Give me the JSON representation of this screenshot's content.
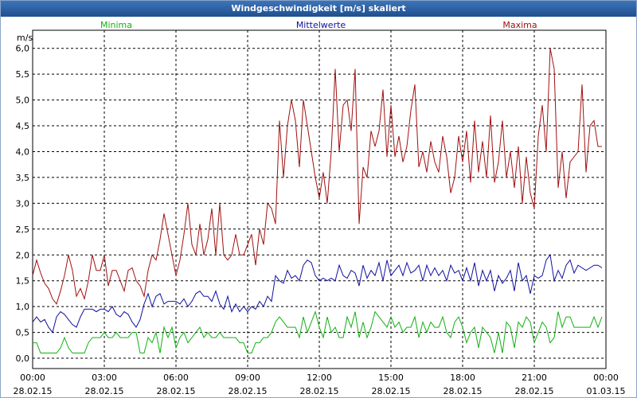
{
  "chart_data": {
    "type": "line",
    "title": "Windgeschwindigkeit [m/s] skaliert",
    "y_label": "m/s",
    "legend": "top",
    "grid": true,
    "xlim": [
      0,
      1440
    ],
    "xticks": [
      {
        "value": 0,
        "label": "00:00\n28.02.15"
      },
      {
        "value": 180,
        "label": "03:00\n28.02.15"
      },
      {
        "value": 360,
        "label": "06:00\n28.02.15"
      },
      {
        "value": 540,
        "label": "09:00\n28.02.15"
      },
      {
        "value": 720,
        "label": "12:00\n28.02.15"
      },
      {
        "value": 900,
        "label": "15:00\n28.02.15"
      },
      {
        "value": 1080,
        "label": "18:00\n28.02.15"
      },
      {
        "value": 1260,
        "label": "21:00\n28.02.15"
      },
      {
        "value": 1440,
        "label": "00:00\n01.03.15"
      }
    ],
    "ylim": [
      -0.2,
      6.35
    ],
    "yticks": [
      {
        "value": 0,
        "label": "0,0"
      },
      {
        "value": 0.5,
        "label": "0,5"
      },
      {
        "value": 1,
        "label": "1,0"
      },
      {
        "value": 1.5,
        "label": "1,5"
      },
      {
        "value": 2,
        "label": "2,0"
      },
      {
        "value": 2.5,
        "label": "2,5"
      },
      {
        "value": 3,
        "label": "3,0"
      },
      {
        "value": 3.5,
        "label": "3,5"
      },
      {
        "value": 4,
        "label": "4,0"
      },
      {
        "value": 4.5,
        "label": "4,5"
      },
      {
        "value": 5,
        "label": "5,0"
      },
      {
        "value": 5.5,
        "label": "5,5"
      },
      {
        "value": 6,
        "label": "6,0"
      }
    ],
    "x": [
      0,
      10,
      20,
      30,
      40,
      50,
      60,
      70,
      80,
      90,
      100,
      110,
      120,
      130,
      140,
      150,
      160,
      170,
      180,
      190,
      200,
      210,
      220,
      230,
      240,
      250,
      260,
      270,
      280,
      290,
      300,
      310,
      320,
      330,
      340,
      350,
      360,
      370,
      380,
      390,
      400,
      410,
      420,
      430,
      440,
      450,
      460,
      470,
      480,
      490,
      500,
      510,
      520,
      530,
      540,
      550,
      560,
      570,
      580,
      590,
      600,
      610,
      620,
      630,
      640,
      650,
      660,
      670,
      680,
      690,
      700,
      710,
      720,
      730,
      740,
      750,
      760,
      770,
      780,
      790,
      800,
      810,
      820,
      830,
      840,
      850,
      860,
      870,
      880,
      890,
      900,
      910,
      920,
      930,
      940,
      950,
      960,
      970,
      980,
      990,
      1000,
      1010,
      1020,
      1030,
      1040,
      1050,
      1060,
      1070,
      1080,
      1090,
      1100,
      1110,
      1120,
      1130,
      1140,
      1150,
      1160,
      1170,
      1180,
      1190,
      1200,
      1210,
      1220,
      1230,
      1240,
      1250,
      1260,
      1270,
      1280,
      1290,
      1300,
      1310,
      1320,
      1330,
      1340,
      1350,
      1360,
      1370,
      1380,
      1390,
      1400,
      1410,
      1420,
      1430
    ],
    "series": [
      {
        "name": "Minima",
        "color": "#10b010",
        "values": [
          0.3,
          0.3,
          0.1,
          0.1,
          0.1,
          0.1,
          0.1,
          0.2,
          0.4,
          0.2,
          0.1,
          0.1,
          0.1,
          0.1,
          0.3,
          0.4,
          0.4,
          0.4,
          0.5,
          0.4,
          0.4,
          0.5,
          0.4,
          0.4,
          0.4,
          0.5,
          0.5,
          0.1,
          0.1,
          0.4,
          0.3,
          0.5,
          0.1,
          0.6,
          0.4,
          0.6,
          0.2,
          0.4,
          0.5,
          0.3,
          0.4,
          0.5,
          0.6,
          0.4,
          0.5,
          0.4,
          0.4,
          0.5,
          0.4,
          0.4,
          0.4,
          0.4,
          0.3,
          0.3,
          0.1,
          0.1,
          0.3,
          0.3,
          0.4,
          0.4,
          0.5,
          0.7,
          0.8,
          0.7,
          0.6,
          0.6,
          0.6,
          0.4,
          0.8,
          0.5,
          0.7,
          0.9,
          0.6,
          0.4,
          0.8,
          0.5,
          0.6,
          0.4,
          0.4,
          0.8,
          0.6,
          0.9,
          0.4,
          0.7,
          0.4,
          0.6,
          0.9,
          0.8,
          0.7,
          0.6,
          0.8,
          0.6,
          0.7,
          0.5,
          0.6,
          0.6,
          0.8,
          0.4,
          0.7,
          0.5,
          0.7,
          0.6,
          0.6,
          0.8,
          0.5,
          0.4,
          0.7,
          0.8,
          0.6,
          0.3,
          0.5,
          0.6,
          0.2,
          0.6,
          0.5,
          0.4,
          0.1,
          0.5,
          0.1,
          0.7,
          0.6,
          0.2,
          0.7,
          0.6,
          0.8,
          0.7,
          0.3,
          0.5,
          0.7,
          0.6,
          0.3,
          0.4,
          0.9,
          0.6,
          0.8,
          0.8,
          0.6,
          0.6,
          0.6,
          0.6,
          0.6,
          0.8,
          0.6,
          0.8
        ]
      },
      {
        "name": "Mittelwerte",
        "color": "#1010a0",
        "values": [
          0.7,
          0.8,
          0.7,
          0.75,
          0.6,
          0.5,
          0.8,
          0.9,
          0.85,
          0.75,
          0.65,
          0.6,
          0.8,
          0.95,
          0.95,
          0.95,
          0.9,
          0.95,
          0.95,
          0.9,
          1.0,
          0.85,
          0.8,
          0.9,
          0.85,
          0.7,
          0.6,
          0.75,
          1.05,
          1.25,
          1.0,
          1.2,
          1.25,
          1.05,
          1.1,
          1.1,
          1.1,
          1.05,
          1.15,
          1.0,
          1.1,
          1.25,
          1.3,
          1.2,
          1.2,
          1.1,
          1.3,
          1.05,
          0.95,
          1.2,
          0.9,
          1.05,
          0.9,
          1.0,
          0.9,
          1.0,
          0.95,
          1.1,
          1.0,
          1.2,
          1.1,
          1.6,
          1.5,
          1.45,
          1.7,
          1.55,
          1.6,
          1.5,
          1.8,
          1.9,
          1.85,
          1.6,
          1.5,
          1.55,
          1.5,
          1.55,
          1.5,
          1.8,
          1.6,
          1.55,
          1.7,
          1.65,
          1.4,
          1.8,
          1.55,
          1.7,
          1.6,
          1.85,
          1.5,
          1.9,
          1.6,
          1.7,
          1.8,
          1.6,
          1.85,
          1.65,
          1.7,
          1.8,
          1.5,
          1.8,
          1.6,
          1.75,
          1.6,
          1.7,
          1.5,
          1.8,
          1.65,
          1.7,
          1.5,
          1.75,
          1.5,
          1.85,
          1.4,
          1.7,
          1.5,
          1.7,
          1.3,
          1.6,
          1.45,
          1.55,
          1.7,
          1.3,
          1.85,
          1.5,
          1.6,
          1.25,
          1.6,
          1.55,
          1.6,
          1.9,
          2.0,
          1.5,
          1.7,
          1.55,
          1.8,
          1.9,
          1.65,
          1.8,
          1.75,
          1.7,
          1.75,
          1.8,
          1.8,
          1.75
        ]
      },
      {
        "name": "Maxima",
        "color": "#a01010",
        "values": [
          1.6,
          1.9,
          1.65,
          1.45,
          1.35,
          1.15,
          1.05,
          1.3,
          1.6,
          2.0,
          1.7,
          1.2,
          1.35,
          1.15,
          1.5,
          2.0,
          1.7,
          1.7,
          2.0,
          1.4,
          1.7,
          1.7,
          1.5,
          1.3,
          1.7,
          1.75,
          1.5,
          1.4,
          1.2,
          1.7,
          2.0,
          1.9,
          2.3,
          2.8,
          2.4,
          2.0,
          1.6,
          1.9,
          2.4,
          3.0,
          2.2,
          2.0,
          2.6,
          2.0,
          2.3,
          2.9,
          2.0,
          3.0,
          2.0,
          1.9,
          2.0,
          2.4,
          2.0,
          2.0,
          2.2,
          2.4,
          1.8,
          2.5,
          2.2,
          3.0,
          2.9,
          2.6,
          4.6,
          3.5,
          4.5,
          5.0,
          4.6,
          3.7,
          5.0,
          4.5,
          4.0,
          3.5,
          3.1,
          3.6,
          3.0,
          4.0,
          5.6,
          4.0,
          4.9,
          5.0,
          4.4,
          5.6,
          2.6,
          3.7,
          3.5,
          4.4,
          4.1,
          4.4,
          5.2,
          3.9,
          4.9,
          3.9,
          4.3,
          3.8,
          4.1,
          4.8,
          5.3,
          3.7,
          4.0,
          3.6,
          4.2,
          3.8,
          3.6,
          4.3,
          3.9,
          3.2,
          3.5,
          4.3,
          3.8,
          4.4,
          3.4,
          4.6,
          3.6,
          4.2,
          3.5,
          4.7,
          3.4,
          3.8,
          4.6,
          3.5,
          4.0,
          3.3,
          4.1,
          3.0,
          3.9,
          3.2,
          2.9,
          4.3,
          4.9,
          4.0,
          6.0,
          5.6,
          3.3,
          4.0,
          3.1,
          3.8,
          3.9,
          4.0,
          5.3,
          3.6,
          4.5,
          4.6,
          4.1,
          4.1
        ]
      }
    ]
  }
}
